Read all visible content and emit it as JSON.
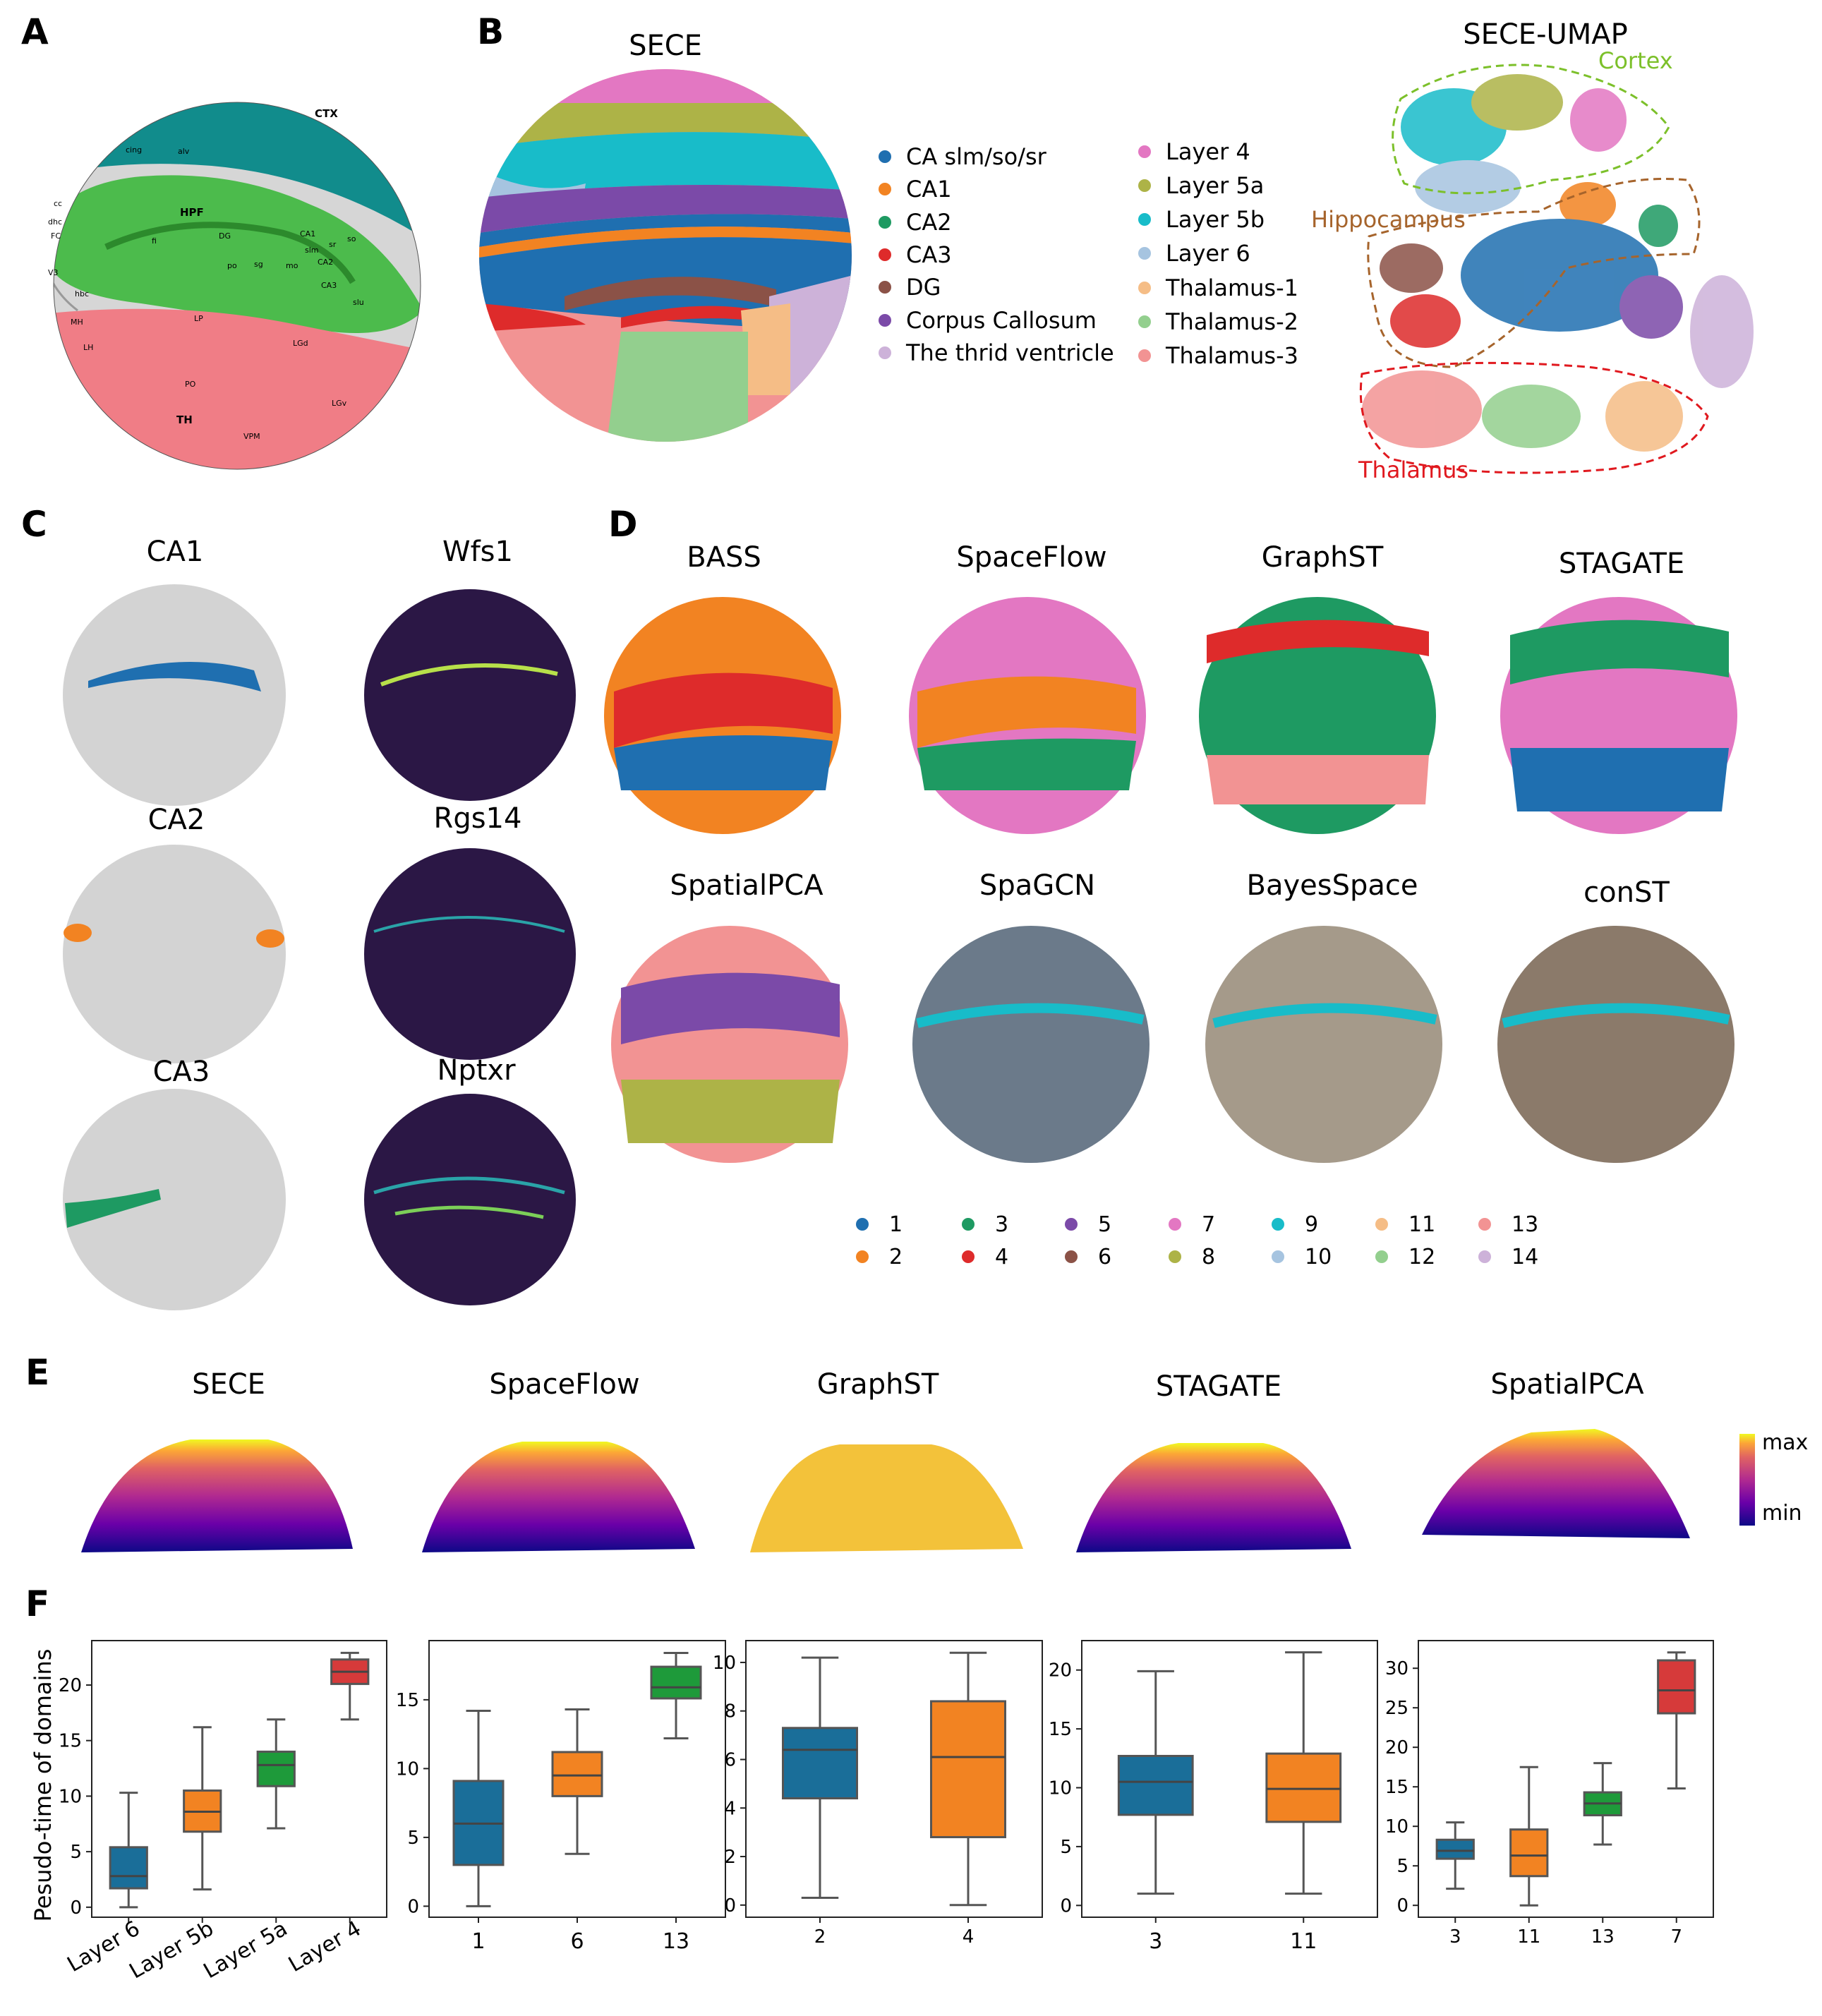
{
  "panels": {
    "A": "A",
    "B": "B",
    "C": "C",
    "D": "D",
    "E": "E",
    "F": "F"
  },
  "atlas": {
    "labels": [
      "CTX",
      "HPF",
      "TH",
      "DG",
      "CA1",
      "CA2",
      "CA3",
      "LP",
      "LH",
      "PO",
      "LGd",
      "VPM",
      "MH",
      "V3",
      "cc",
      "cing",
      "alv",
      "FC",
      "dhc",
      "hbc",
      "fi",
      "po",
      "sg",
      "mo",
      "slm",
      "sr",
      "so",
      "slu",
      "LGv"
    ]
  },
  "sece": {
    "title": "SECE",
    "legend": [
      {
        "label": "CA slm/so/sr",
        "color": "#1f6fb0"
      },
      {
        "label": "CA1",
        "color": "#f28322"
      },
      {
        "label": "CA2",
        "color": "#1e9a62"
      },
      {
        "label": "CA3",
        "color": "#de2b2b"
      },
      {
        "label": "DG",
        "color": "#8b5247"
      },
      {
        "label": "Corpus Callosum",
        "color": "#7b4aa8"
      },
      {
        "label": "The thrid ventricle",
        "color": "#cdb2d9"
      },
      {
        "label": "Layer 4",
        "color": "#e377c2"
      },
      {
        "label": "Layer 5a",
        "color": "#adb347"
      },
      {
        "label": "Layer 5b",
        "color": "#18bcc9"
      },
      {
        "label": "Layer 6",
        "color": "#a6c4e0"
      },
      {
        "label": "Thalamus-1",
        "color": "#f5bd86"
      },
      {
        "label": "Thalamus-2",
        "color": "#93cf8e"
      },
      {
        "label": "Thalamus-3",
        "color": "#f29393"
      }
    ]
  },
  "umap": {
    "title": "SECE-UMAP",
    "regions": [
      {
        "label": "Cortex",
        "color": "#7cc02a"
      },
      {
        "label": "Hippocampus",
        "color": "#a6642c"
      },
      {
        "label": "Thalamus",
        "color": "#e0191f"
      }
    ]
  },
  "panelC": {
    "domains": [
      {
        "label": "CA1",
        "color": "#1f6fb0"
      },
      {
        "label": "CA2",
        "color": "#f28322"
      },
      {
        "label": "CA3",
        "color": "#1e9a62"
      }
    ],
    "genes": [
      "Wfs1",
      "Rgs14",
      "Nptxr"
    ]
  },
  "panelD": {
    "methods": [
      "BASS",
      "SpaceFlow",
      "GraphST",
      "STAGATE",
      "SpatialPCA",
      "SpaGCN",
      "BayesSpace",
      "conST"
    ],
    "legend": [
      {
        "label": "1",
        "color": "#1f6fb0"
      },
      {
        "label": "2",
        "color": "#f28322"
      },
      {
        "label": "3",
        "color": "#1e9a62"
      },
      {
        "label": "4",
        "color": "#de2b2b"
      },
      {
        "label": "5",
        "color": "#7b4aa8"
      },
      {
        "label": "6",
        "color": "#8b5247"
      },
      {
        "label": "7",
        "color": "#e377c2"
      },
      {
        "label": "8",
        "color": "#adb347"
      },
      {
        "label": "9",
        "color": "#18bcc9"
      },
      {
        "label": "10",
        "color": "#a6c4e0"
      },
      {
        "label": "11",
        "color": "#f5bd86"
      },
      {
        "label": "12",
        "color": "#93cf8e"
      },
      {
        "label": "13",
        "color": "#f29393"
      },
      {
        "label": "14",
        "color": "#cdb2d9"
      }
    ]
  },
  "panelE": {
    "methods": [
      "SECE",
      "SpaceFlow",
      "GraphST",
      "STAGATE",
      "SpatialPCA"
    ],
    "colorbar": {
      "max": "max",
      "min": "min"
    }
  },
  "chart_data": [
    {
      "type": "box",
      "ylabel": "Pesudo-time of domains",
      "categories": [
        "Layer 6",
        "Layer 5b",
        "Layer 5a",
        "Layer 4"
      ],
      "colors": [
        "#1a6e99",
        "#f28322",
        "#1e9a3a",
        "#d63a3a"
      ],
      "boxes": [
        {
          "min": 0,
          "q1": 1.7,
          "median": 2.8,
          "q3": 5.4,
          "max": 10.3
        },
        {
          "min": 1.6,
          "q1": 6.8,
          "median": 8.6,
          "q3": 10.5,
          "max": 16.2
        },
        {
          "min": 7.1,
          "q1": 10.9,
          "median": 12.8,
          "q3": 14.0,
          "max": 16.9
        },
        {
          "min": 16.9,
          "q1": 20.1,
          "median": 21.2,
          "q3": 22.3,
          "max": 22.9
        }
      ],
      "yticks": [
        0,
        5,
        10,
        15,
        20
      ],
      "ylim": [
        -0.9,
        24
      ]
    },
    {
      "type": "box",
      "categories": [
        "1",
        "6",
        "13"
      ],
      "colors": [
        "#1a6e99",
        "#f28322",
        "#1e9a3a"
      ],
      "boxes": [
        {
          "min": 0,
          "q1": 3.0,
          "median": 6.0,
          "q3": 9.1,
          "max": 14.2
        },
        {
          "min": 3.8,
          "q1": 8.0,
          "median": 9.5,
          "q3": 11.2,
          "max": 14.3
        },
        {
          "min": 12.2,
          "q1": 15.1,
          "median": 15.9,
          "q3": 17.4,
          "max": 18.4
        }
      ],
      "yticks": [
        0,
        5,
        10,
        15
      ],
      "ylim": [
        -0.8,
        19.3
      ]
    },
    {
      "type": "box",
      "categories": [
        "2",
        "4"
      ],
      "colors": [
        "#1a6e99",
        "#f28322"
      ],
      "boxes": [
        {
          "min": 0.3,
          "q1": 4.4,
          "median": 6.4,
          "q3": 7.3,
          "max": 10.2
        },
        {
          "min": 0,
          "q1": 2.8,
          "median": 6.1,
          "q3": 8.4,
          "max": 10.4
        }
      ],
      "yticks": [
        0,
        2,
        4,
        6,
        8,
        10
      ],
      "ylim": [
        -0.5,
        10.9
      ]
    },
    {
      "type": "box",
      "categories": [
        "3",
        "11"
      ],
      "colors": [
        "#1a6e99",
        "#f28322"
      ],
      "boxes": [
        {
          "min": 1.0,
          "q1": 7.7,
          "median": 10.5,
          "q3": 12.7,
          "max": 19.9
        },
        {
          "min": 1.0,
          "q1": 7.1,
          "median": 9.9,
          "q3": 12.9,
          "max": 21.5
        }
      ],
      "yticks": [
        0,
        5,
        10,
        15,
        20
      ],
      "ylim": [
        -1,
        22.5
      ]
    },
    {
      "type": "box",
      "categories": [
        "3",
        "11",
        "13",
        "7"
      ],
      "colors": [
        "#1a6e99",
        "#f28322",
        "#1e9a3a",
        "#d63a3a"
      ],
      "boxes": [
        {
          "min": 2.1,
          "q1": 5.9,
          "median": 6.9,
          "q3": 8.3,
          "max": 10.5
        },
        {
          "min": 0,
          "q1": 3.7,
          "median": 6.3,
          "q3": 9.6,
          "max": 17.5
        },
        {
          "min": 7.7,
          "q1": 11.4,
          "median": 12.9,
          "q3": 14.3,
          "max": 18.0
        },
        {
          "min": 14.8,
          "q1": 24.3,
          "median": 27.2,
          "q3": 31.0,
          "max": 32.0
        }
      ],
      "yticks": [
        0,
        5,
        10,
        15,
        20,
        25,
        30
      ],
      "ylim": [
        -1.5,
        33.5
      ]
    }
  ]
}
